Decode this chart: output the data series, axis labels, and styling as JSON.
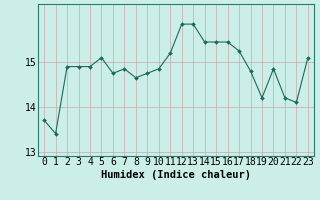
{
  "x": [
    0,
    1,
    2,
    3,
    4,
    5,
    6,
    7,
    8,
    9,
    10,
    11,
    12,
    13,
    14,
    15,
    16,
    17,
    18,
    19,
    20,
    21,
    22,
    23
  ],
  "y": [
    13.7,
    13.4,
    14.9,
    14.9,
    14.9,
    15.1,
    14.75,
    14.85,
    14.65,
    14.75,
    14.85,
    15.2,
    15.85,
    15.85,
    15.45,
    15.45,
    15.45,
    15.25,
    14.8,
    14.2,
    14.85,
    14.2,
    14.1,
    15.1
  ],
  "line_color": "#1a6b5a",
  "marker": "D",
  "marker_size": 2.0,
  "bg_color": "#cceee8",
  "grid_color_major": "#c8a8a8",
  "grid_color_minor": "#c8a8a8",
  "title": "",
  "xlabel": "Humidex (Indice chaleur)",
  "ylabel": "",
  "ylim": [
    12.9,
    16.3
  ],
  "xlim": [
    -0.5,
    23.5
  ],
  "yticks": [
    13,
    14,
    15
  ],
  "xticks": [
    0,
    1,
    2,
    3,
    4,
    5,
    6,
    7,
    8,
    9,
    10,
    11,
    12,
    13,
    14,
    15,
    16,
    17,
    18,
    19,
    20,
    21,
    22,
    23
  ],
  "xlabel_fontsize": 7.5,
  "tick_fontsize": 7
}
